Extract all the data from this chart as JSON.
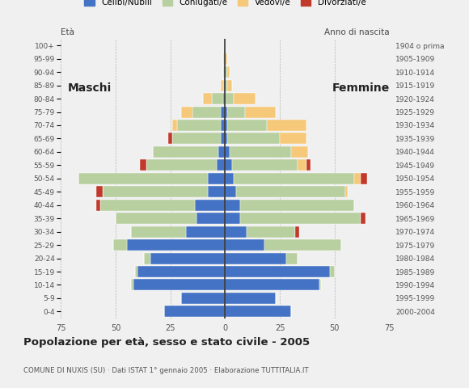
{
  "age_groups": [
    "0-4",
    "5-9",
    "10-14",
    "15-19",
    "20-24",
    "25-29",
    "30-34",
    "35-39",
    "40-44",
    "45-49",
    "50-54",
    "55-59",
    "60-64",
    "65-69",
    "70-74",
    "75-79",
    "80-84",
    "85-89",
    "90-94",
    "95-99",
    "100+"
  ],
  "birth_years": [
    "2000-2004",
    "1995-1999",
    "1990-1994",
    "1985-1989",
    "1980-1984",
    "1975-1979",
    "1970-1974",
    "1965-1969",
    "1960-1964",
    "1955-1959",
    "1950-1954",
    "1945-1949",
    "1940-1944",
    "1935-1939",
    "1930-1934",
    "1925-1929",
    "1920-1924",
    "1915-1919",
    "1910-1914",
    "1905-1909",
    "1904 o prima"
  ],
  "males": {
    "celibe": [
      28,
      20,
      42,
      40,
      34,
      45,
      18,
      13,
      14,
      8,
      8,
      4,
      3,
      2,
      2,
      2,
      1,
      0,
      0,
      0,
      0
    ],
    "coniugato": [
      0,
      0,
      1,
      1,
      3,
      6,
      25,
      37,
      43,
      48,
      59,
      32,
      30,
      22,
      20,
      13,
      5,
      1,
      1,
      1,
      0
    ],
    "vedovo": [
      0,
      0,
      0,
      0,
      0,
      0,
      0,
      0,
      0,
      0,
      0,
      0,
      0,
      0,
      2,
      5,
      4,
      1,
      0,
      0,
      0
    ],
    "divorziato": [
      0,
      0,
      0,
      0,
      0,
      0,
      0,
      0,
      2,
      3,
      0,
      3,
      0,
      2,
      0,
      0,
      0,
      0,
      0,
      0,
      0
    ]
  },
  "females": {
    "nubile": [
      30,
      23,
      43,
      48,
      28,
      18,
      10,
      7,
      7,
      5,
      4,
      3,
      2,
      1,
      1,
      1,
      0,
      0,
      0,
      0,
      0
    ],
    "coniugata": [
      0,
      0,
      1,
      2,
      5,
      35,
      22,
      55,
      52,
      50,
      55,
      30,
      28,
      24,
      18,
      8,
      4,
      1,
      1,
      0,
      0
    ],
    "vedova": [
      0,
      0,
      0,
      0,
      0,
      0,
      0,
      0,
      0,
      1,
      3,
      4,
      8,
      12,
      18,
      14,
      10,
      2,
      1,
      1,
      0
    ],
    "divorziata": [
      0,
      0,
      0,
      0,
      0,
      0,
      2,
      2,
      0,
      0,
      3,
      2,
      0,
      0,
      0,
      0,
      0,
      0,
      0,
      0,
      0
    ]
  },
  "colors": {
    "celibe_nubile": "#4472c4",
    "coniugato_coniugata": "#b8cfa0",
    "vedovo_vedova": "#f5c87a",
    "divorziato_divorziata": "#c0392b"
  },
  "title": "Popolazione per età, sesso e stato civile - 2005",
  "subtitle": "COMUNE DI NUXIS (SU) · Dati ISTAT 1° gennaio 2005 · Elaborazione TUTTITALIA.IT",
  "xlabel_left": "Maschi",
  "xlabel_right": "Femmine",
  "ylabel_left": "Età",
  "ylabel_right": "Anno di nascita",
  "xlim": 75,
  "background_color": "#f0f0f0",
  "legend_labels": [
    "Celibi/Nubili",
    "Coniugati/e",
    "Vedovi/e",
    "Divorziati/e"
  ]
}
